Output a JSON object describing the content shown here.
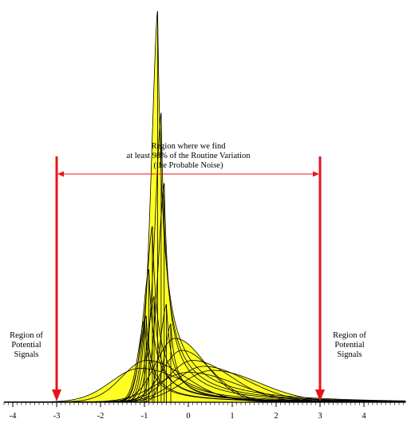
{
  "chart_data": {
    "type": "area",
    "title": "",
    "xlabel": "",
    "ylabel": "",
    "xlim": [
      -4.2,
      4.95
    ],
    "ticks": [
      {
        "value": -4,
        "label": "-4"
      },
      {
        "value": -3,
        "label": "-3"
      },
      {
        "value": -2,
        "label": "-2"
      },
      {
        "value": -1,
        "label": "-1"
      },
      {
        "value": 0,
        "label": "0"
      },
      {
        "value": 1,
        "label": "1"
      },
      {
        "value": 2,
        "label": "2"
      },
      {
        "value": 3,
        "label": "3"
      },
      {
        "value": 4,
        "label": "4"
      }
    ],
    "limits": {
      "lower": -3,
      "upper": 3,
      "color": "#e8141b"
    },
    "fill_color": "#ffff22",
    "curve_color": "#000000",
    "annotations": {
      "center_line1": "Region where we find",
      "center_line2": "at least 98% of the Routine Variation",
      "center_line3": "(the Probable Noise)",
      "left_line1": "Region of",
      "left_line2": "Potential",
      "left_line3": "Signals",
      "right_line1": "Region of",
      "right_line2": "Potential",
      "right_line3": "Signals"
    },
    "curves": [
      {
        "mode": -0.7,
        "peak": 1.0
      },
      {
        "mode": -0.62,
        "peak": 0.74
      },
      {
        "mode": -0.55,
        "peak": 0.56
      },
      {
        "mode": -0.82,
        "peak": 0.45
      },
      {
        "mode": -0.9,
        "peak": 0.34
      },
      {
        "mode": -0.96,
        "peak": 0.22
      },
      {
        "mode": -1.0,
        "peak": 0.21
      },
      {
        "mode": -0.78,
        "peak": 0.27
      },
      {
        "mode": -0.5,
        "peak": 0.25
      },
      {
        "mode": -0.4,
        "peak": 0.2
      },
      {
        "mode": -0.3,
        "peak": 0.16
      },
      {
        "mode": -0.15,
        "peak": 0.13
      },
      {
        "mode": 0.1,
        "peak": 0.105
      },
      {
        "mode": 0.35,
        "peak": 0.09
      },
      {
        "mode": 0.55,
        "peak": 0.08
      },
      {
        "mode": -1.1,
        "peak": 0.085
      },
      {
        "mode": -0.95,
        "peak": 0.105
      },
      {
        "mode": 0.0,
        "peak": 0.075
      }
    ]
  }
}
